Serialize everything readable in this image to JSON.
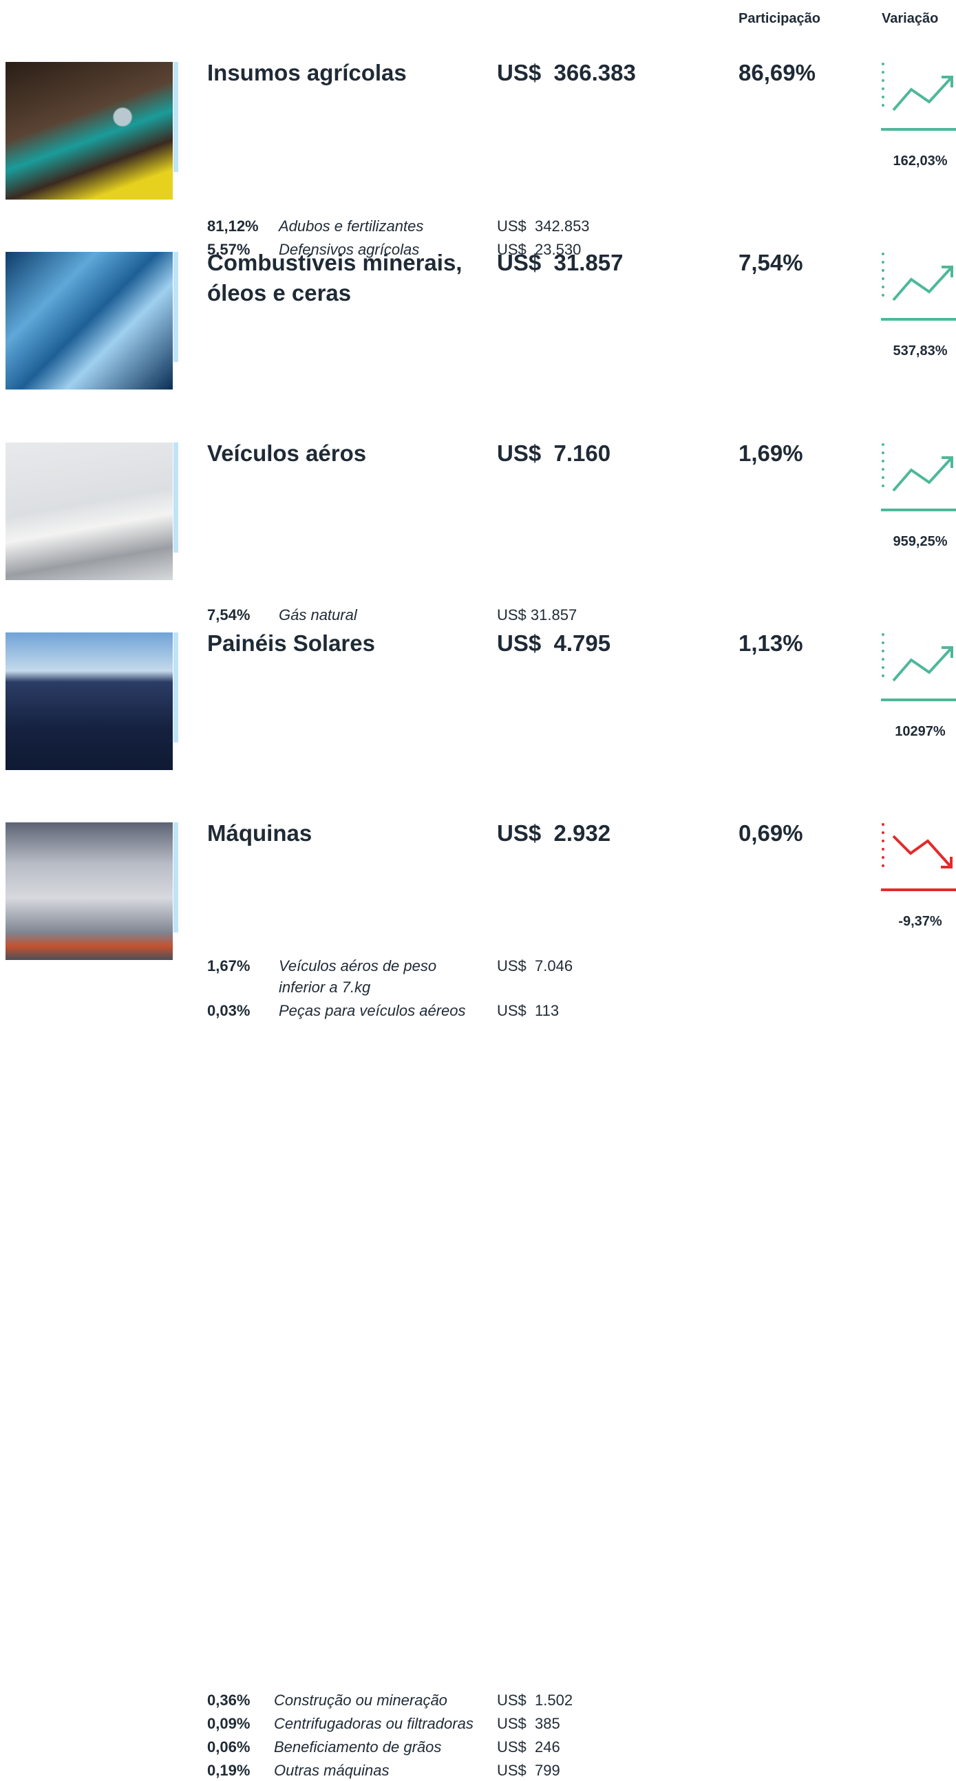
{
  "header": {
    "share": "Participação",
    "variation": "Variação"
  },
  "rows": [
    {
      "title": "Insumos agrícolas",
      "value": "US$  366.383",
      "share": "86,69%",
      "variation": "162,03%",
      "items": [
        {
          "share": "81,12%",
          "label": "Adubos e fertilizantes",
          "value": "US$  342.853"
        },
        {
          "share": "5,57%",
          "label": "Defensivos agrícolas",
          "value": "US$  23.530"
        }
      ]
    },
    {
      "title": "Combustíveis minerais, óleos e ceras",
      "value": "US$  31.857",
      "share": "7,54%",
      "variation": "537,83%",
      "items": [
        {
          "share": "7,54%",
          "label": "Gás natural",
          "value": "US$ 31.857"
        }
      ]
    },
    {
      "title": "Veículos aéros",
      "value": "US$  7.160",
      "share": "1,69%",
      "variation": "959,25%",
      "items": [
        {
          "share": "1,67%",
          "label": "Veículos aéros de peso inferior a 7.kg",
          "value": "US$  7.046"
        },
        {
          "share": "0,03%",
          "label": "Peças para veículos aéreos",
          "value": "US$  113"
        }
      ]
    },
    {
      "title": "Painéis Solares",
      "value": "US$  4.795",
      "share": "1,13%",
      "variation": "10297%",
      "items": []
    },
    {
      "title": "Máquinas",
      "value": "US$  2.932",
      "share": "0,69%",
      "variation": "-9,37%",
      "items": [
        {
          "share": "0,36%",
          "label": "Construção ou mineração",
          "value": "US$  1.502"
        },
        {
          "share": "0,09%",
          "label": "Centrifugadoras ou filtradoras",
          "value": "US$  385"
        },
        {
          "share": "0,06%",
          "label": "Beneficiamento de grãos",
          "value": "US$  246"
        },
        {
          "share": "0,19%",
          "label": "Outras máquinas",
          "value": "US$  799"
        }
      ]
    }
  ]
}
